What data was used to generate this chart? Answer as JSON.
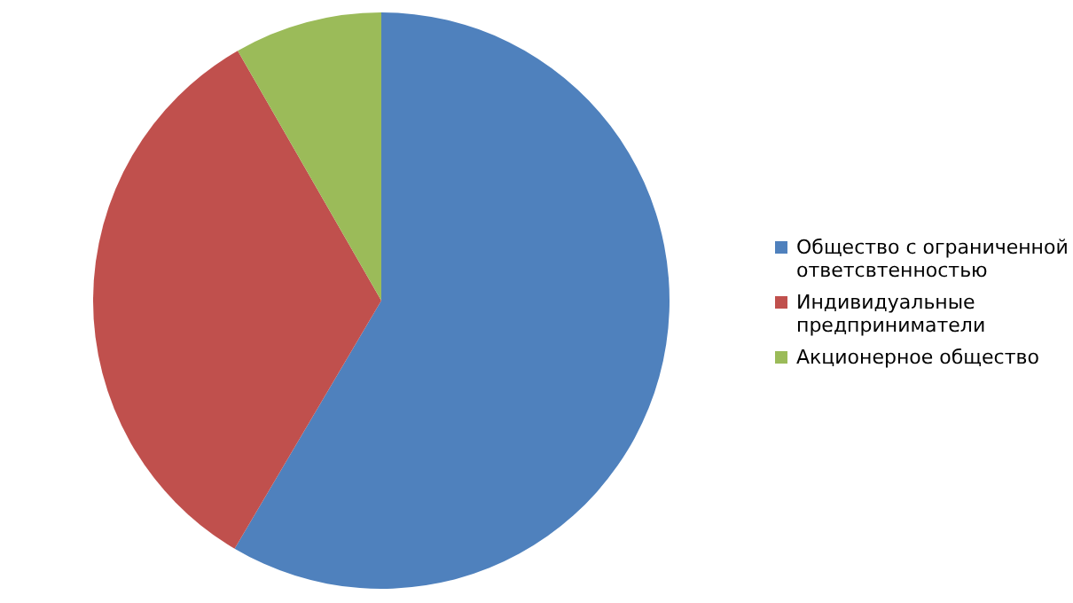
{
  "chart_data": {
    "type": "pie",
    "categories": [
      "Общество с ограниченной ответсвтенностью",
      "Индивидуальные предприниматели",
      "Акционерное общество"
    ],
    "values": [
      58.5,
      33.2,
      8.3
    ],
    "colors": [
      "#4f81bd",
      "#c0504d",
      "#9bbb59"
    ],
    "legend": "right"
  }
}
